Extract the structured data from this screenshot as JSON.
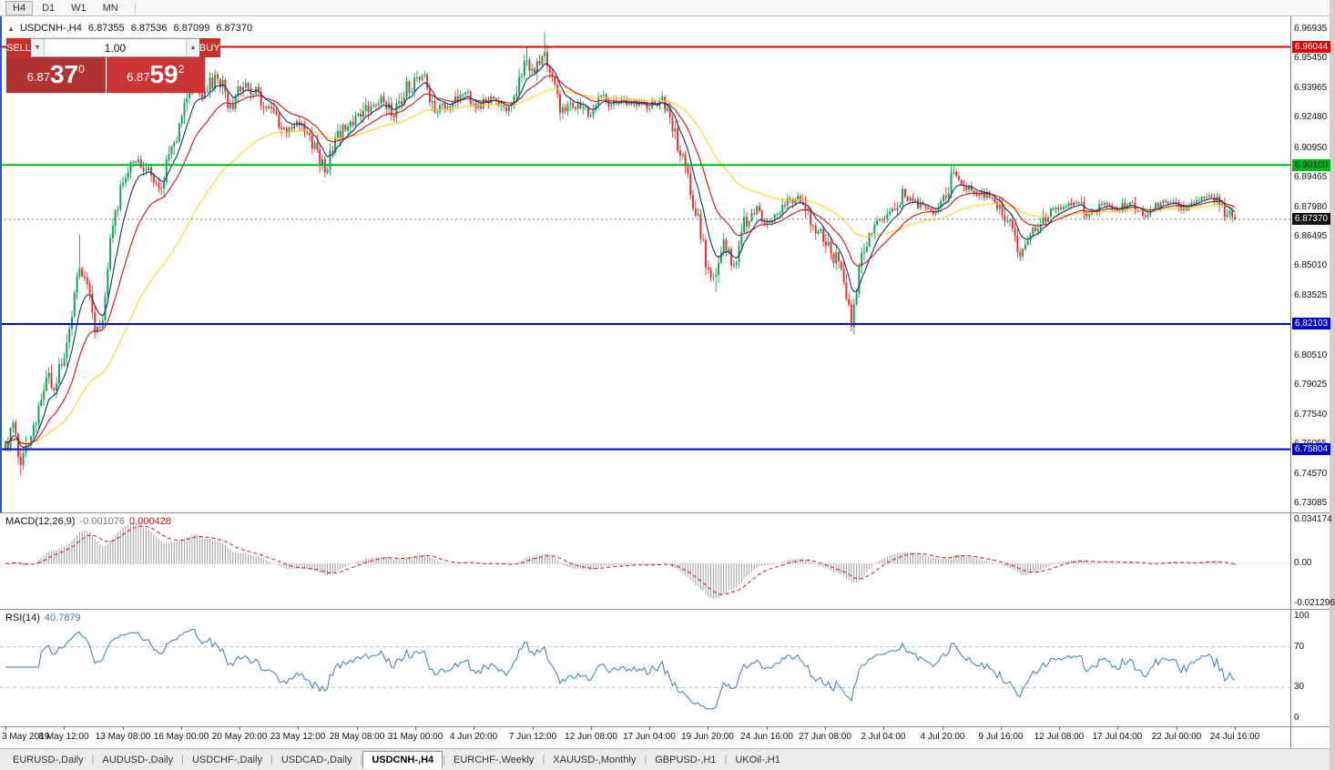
{
  "toolbar": {
    "timeframes": [
      "H4",
      "D1",
      "W1",
      "MN"
    ],
    "active_timeframe": "H4"
  },
  "chart_header": {
    "marker": "▲",
    "symbol_timeframe": "USDCNH-,H4",
    "open": "6.87355",
    "high": "6.87536",
    "low": "6.87099",
    "close": "6.87370"
  },
  "trade_panel": {
    "sell_label": "SELL",
    "buy_label": "BUY",
    "volume": "1.00",
    "volume_down": "▼",
    "volume_up": "▲",
    "sell_price": {
      "prefix": "6.87",
      "big": "37",
      "sup": "0"
    },
    "buy_price": {
      "prefix": "6.87",
      "big": "59",
      "sup": "2"
    }
  },
  "price_axis": {
    "ticks": [
      "6.96935",
      "6.95450",
      "6.93965",
      "6.92480",
      "6.90950",
      "6.89465",
      "6.87980",
      "6.86495",
      "6.85010",
      "6.83525",
      "6.80510",
      "6.79025",
      "6.77540",
      "6.76055",
      "6.74570",
      "6.73085"
    ],
    "current_price": "6.87370",
    "current_price_bg": "#111111",
    "level_labels": [
      {
        "text": "6.96044",
        "color": "#e00000",
        "text_color": "#ffffff"
      },
      {
        "text": "6.90100",
        "color": "#00b41e",
        "text_color": "#003300"
      },
      {
        "text": "6.82103",
        "color": "#0000cc",
        "text_color": "#ffffff"
      },
      {
        "text": "6.75804",
        "color": "#0000cc",
        "text_color": "#ffffff"
      }
    ]
  },
  "macd_panel": {
    "label": "MACD(12,26,9)",
    "main_value": "-0.001076",
    "signal_value": "0.000428",
    "axis_labels": [
      "0.034174",
      "0.00",
      "-0.021296"
    ]
  },
  "rsi_panel": {
    "label": "RSI(14)",
    "value": "40.7879",
    "axis_labels": [
      "100",
      "70",
      "30",
      "0"
    ]
  },
  "time_axis": {
    "labels": [
      "3 May 2019",
      "8 May 12:00",
      "13 May 08:00",
      "16 May 00:00",
      "20 May 20:00",
      "23 May 12:00",
      "28 May 08:00",
      "31 May 00:00",
      "4 Jun 20:00",
      "7 Jun 12:00",
      "12 Jun 08:00",
      "17 Jun 04:00",
      "19 Jun 20:00",
      "24 Jun 16:00",
      "27 Jun 08:00",
      "2 Jul 04:00",
      "4 Jul 20:00",
      "9 Jul 16:00",
      "12 Jul 08:00",
      "17 Jul 04:00",
      "22 Jul 00:00",
      "24 Jul 16:00"
    ]
  },
  "tab_bar": {
    "tabs": [
      "EURUSD-,Daily",
      "AUDUSD-,Daily",
      "USDCHF-,Daily",
      "USDCAD-,Daily",
      "USDCNH-,H4",
      "EURCHF-,Weekly",
      "XAUUSD-,Monthly",
      "GBPUSD-,H1",
      "UKOil-,H1"
    ],
    "active_tab": "USDCNH-,H4"
  },
  "colors": {
    "sell_button": "#c5312b",
    "buy_button": "#c5312b",
    "sell_price_bg": "#b23232",
    "buy_price_bg": "#cb3434",
    "rsi_line": "#3c78b4",
    "macd_histogram": "#a6a6a6",
    "macd_signal": "#cc1616",
    "bid_line": "#777777"
  },
  "chart_data": {
    "type": "candlestick",
    "symbol": "USDCNH-",
    "timeframe": "H4",
    "bars": 482,
    "seed": 20190724,
    "price_range": [
      6.72635,
      6.97576
    ],
    "last_close": 6.8737,
    "ohlc_current": [
      6.87355,
      6.87536,
      6.87099,
      6.8737
    ],
    "anchors": [
      [
        0,
        6.758
      ],
      [
        3,
        6.771
      ],
      [
        6,
        6.752
      ],
      [
        9,
        6.76
      ],
      [
        12,
        6.772
      ],
      [
        16,
        6.798
      ],
      [
        19,
        6.787
      ],
      [
        24,
        6.812
      ],
      [
        29,
        6.852
      ],
      [
        32,
        6.84
      ],
      [
        35,
        6.82
      ],
      [
        38,
        6.824
      ],
      [
        41,
        6.86
      ],
      [
        46,
        6.896
      ],
      [
        51,
        6.903
      ],
      [
        56,
        6.898
      ],
      [
        60,
        6.89
      ],
      [
        65,
        6.906
      ],
      [
        70,
        6.932
      ],
      [
        73,
        6.944
      ],
      [
        77,
        6.936
      ],
      [
        83,
        6.947
      ],
      [
        88,
        6.93
      ],
      [
        93,
        6.941
      ],
      [
        99,
        6.937
      ],
      [
        104,
        6.927
      ],
      [
        110,
        6.919
      ],
      [
        115,
        6.923
      ],
      [
        121,
        6.909
      ],
      [
        125,
        6.899
      ],
      [
        130,
        6.917
      ],
      [
        136,
        6.921
      ],
      [
        142,
        6.931
      ],
      [
        148,
        6.935
      ],
      [
        152,
        6.927
      ],
      [
        157,
        6.939
      ],
      [
        163,
        6.945
      ],
      [
        168,
        6.931
      ],
      [
        173,
        6.929
      ],
      [
        179,
        6.937
      ],
      [
        185,
        6.931
      ],
      [
        190,
        6.934
      ],
      [
        196,
        6.931
      ],
      [
        200,
        6.94
      ],
      [
        204,
        6.953
      ],
      [
        207,
        6.947
      ],
      [
        211,
        6.961
      ],
      [
        214,
        6.943
      ],
      [
        218,
        6.927
      ],
      [
        223,
        6.931
      ],
      [
        229,
        6.925
      ],
      [
        234,
        6.935
      ],
      [
        239,
        6.931
      ],
      [
        245,
        6.933
      ],
      [
        251,
        6.93
      ],
      [
        257,
        6.932
      ],
      [
        261,
        6.921
      ],
      [
        266,
        6.898
      ],
      [
        270,
        6.878
      ],
      [
        274,
        6.854
      ],
      [
        278,
        6.843
      ],
      [
        281,
        6.863
      ],
      [
        285,
        6.849
      ],
      [
        289,
        6.872
      ],
      [
        294,
        6.879
      ],
      [
        299,
        6.871
      ],
      [
        305,
        6.881
      ],
      [
        311,
        6.885
      ],
      [
        316,
        6.869
      ],
      [
        321,
        6.864
      ],
      [
        326,
        6.85
      ],
      [
        331,
        6.823
      ],
      [
        335,
        6.858
      ],
      [
        341,
        6.871
      ],
      [
        346,
        6.874
      ],
      [
        351,
        6.887
      ],
      [
        357,
        6.881
      ],
      [
        363,
        6.878
      ],
      [
        368,
        6.884
      ],
      [
        371,
        6.897
      ],
      [
        376,
        6.89
      ],
      [
        382,
        6.887
      ],
      [
        387,
        6.883
      ],
      [
        392,
        6.875
      ],
      [
        397,
        6.857
      ],
      [
        402,
        6.867
      ],
      [
        408,
        6.877
      ],
      [
        413,
        6.879
      ],
      [
        419,
        6.883
      ],
      [
        424,
        6.876
      ],
      [
        430,
        6.881
      ],
      [
        435,
        6.878
      ],
      [
        440,
        6.883
      ],
      [
        446,
        6.876
      ],
      [
        451,
        6.881
      ],
      [
        457,
        6.884
      ],
      [
        462,
        6.879
      ],
      [
        467,
        6.883
      ],
      [
        472,
        6.885
      ],
      [
        477,
        6.878
      ],
      [
        481,
        6.8737
      ]
    ],
    "wick_events": [
      {
        "i": 6,
        "low": 6.7448
      },
      {
        "i": 29,
        "high": 6.866
      },
      {
        "i": 125,
        "low": 6.8968
      },
      {
        "i": 204,
        "high": 6.96
      },
      {
        "i": 211,
        "high": 6.968
      },
      {
        "i": 278,
        "low": 6.8372
      },
      {
        "i": 331,
        "low": 6.8212
      },
      {
        "i": 371,
        "high": 6.901
      },
      {
        "i": 397,
        "low": 6.8528
      }
    ],
    "horizontal_levels": [
      {
        "price": 6.96044,
        "color": "#e00000"
      },
      {
        "price": 6.901,
        "color": "#00b41e"
      },
      {
        "price": 6.82103,
        "color": "#0000cc"
      },
      {
        "price": 6.75804,
        "color": "#0000cc"
      }
    ],
    "moving_averages": [
      {
        "period": 8,
        "color": "#1c2e6b"
      },
      {
        "period": 21,
        "color": "#c81414"
      },
      {
        "period": 55,
        "color": "#ffd21e"
      }
    ],
    "macd": {
      "fast": 12,
      "slow": 26,
      "signal": 9
    },
    "rsi": {
      "period": 14,
      "levels": [
        70,
        30
      ]
    },
    "candle_up_color": "#18a15c",
    "candle_down_color": "#e23535"
  }
}
